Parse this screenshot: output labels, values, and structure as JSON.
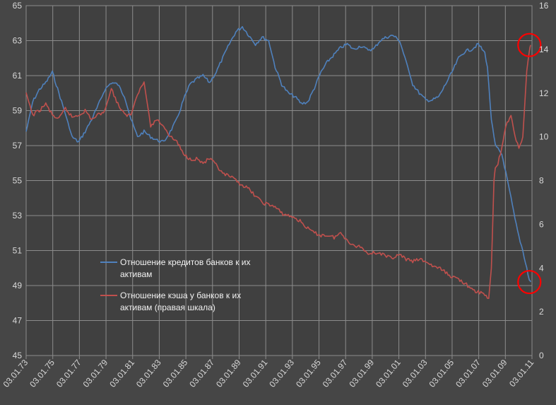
{
  "chart_data": {
    "type": "line",
    "title": "",
    "xlabel": "",
    "ylabel": "",
    "y2label": "",
    "grid": true,
    "legend_position": "center-left",
    "x_ticks": [
      "03.01.73",
      "03.01.75",
      "03.01.77",
      "03.01.79",
      "03.01.81",
      "03.01.83",
      "03.01.85",
      "03.01.87",
      "03.01.89",
      "03.01.91",
      "03.01.93",
      "03.01.95",
      "03.01.97",
      "03.01.99",
      "03.01.01",
      "03.01.03",
      "03.01.05",
      "03.01.07",
      "03.01.09",
      "03.01.11"
    ],
    "y_ticks": [
      "45",
      "47",
      "49",
      "51",
      "53",
      "55",
      "57",
      "59",
      "61",
      "63",
      "65"
    ],
    "y2_ticks": [
      "0",
      "2",
      "4",
      "6",
      "8",
      "10",
      "12",
      "14",
      "16"
    ],
    "ylim": [
      45,
      65
    ],
    "y2lim": [
      0,
      16
    ],
    "x_range_years": [
      1973,
      2011.6
    ],
    "series": [
      {
        "name": "Отношение кредитов  банков к их активам",
        "name_lines": [
          "Отношение  кредитов  банков к их",
          "активам"
        ],
        "axis": "left",
        "color": "#4f81bd",
        "x": [
          1973,
          1973.5,
          1974,
          1974.5,
          1975,
          1975.5,
          1976,
          1976.5,
          1977,
          1977.5,
          1978,
          1978.5,
          1979,
          1979.5,
          1980,
          1980.5,
          1981,
          1981.5,
          1982,
          1982.5,
          1983,
          1983.5,
          1984,
          1984.5,
          1985,
          1985.5,
          1986,
          1986.5,
          1987,
          1987.5,
          1988,
          1988.5,
          1989,
          1989.5,
          1990,
          1990.5,
          1991,
          1991.5,
          1992,
          1992.5,
          1993,
          1993.5,
          1994,
          1994.5,
          1995,
          1995.5,
          1996,
          1996.5,
          1997,
          1997.5,
          1998,
          1998.5,
          1999,
          1999.5,
          2000,
          2000.5,
          2001,
          2001.5,
          2002,
          2002.5,
          2003,
          2003.5,
          2004,
          2004.5,
          2005,
          2005.5,
          2006,
          2006.5,
          2007,
          2007.5,
          2008,
          2008.2,
          2008.5,
          2008.8,
          2009,
          2009.3,
          2009.6,
          2010,
          2010.3,
          2010.6,
          2010.9,
          2011.2,
          2011.4,
          2011.5
        ],
        "values": [
          57.8,
          59.5,
          60.2,
          60.6,
          61.2,
          60.0,
          58.8,
          57.5,
          57.2,
          57.8,
          58.5,
          59.3,
          60.2,
          60.6,
          60.5,
          59.8,
          58.5,
          57.5,
          57.8,
          57.5,
          57.3,
          57.2,
          57.8,
          58.5,
          59.6,
          60.5,
          60.8,
          61.0,
          60.6,
          61.2,
          62.0,
          62.8,
          63.5,
          63.8,
          63.3,
          62.8,
          63.2,
          63.0,
          61.5,
          60.5,
          60.0,
          59.8,
          59.4,
          59.5,
          60.3,
          61.2,
          61.8,
          62.2,
          62.6,
          62.8,
          62.5,
          62.7,
          62.5,
          62.5,
          63.0,
          63.2,
          63.3,
          63.0,
          61.8,
          60.5,
          60.0,
          59.6,
          59.6,
          59.8,
          60.5,
          61.2,
          62.0,
          62.4,
          62.5,
          62.8,
          62.3,
          61.5,
          58.5,
          57.0,
          56.8,
          56.5,
          55.5,
          54.0,
          52.8,
          51.8,
          51.0,
          50.0,
          49.3,
          49.2
        ]
      },
      {
        "name": "Отношение  кэша у банков к их активам (правая шкала)",
        "name_lines": [
          "Отношение  кэша у банков к их",
          "активам (правая шкала)"
        ],
        "axis": "right",
        "color": "#c0504d",
        "x": [
          1973,
          1973.5,
          1974,
          1974.5,
          1975,
          1975.5,
          1976,
          1976.5,
          1977,
          1977.5,
          1978,
          1978.5,
          1979,
          1979.5,
          1980,
          1980.5,
          1981,
          1981.5,
          1982,
          1982.5,
          1983,
          1983.5,
          1984,
          1984.5,
          1985,
          1985.5,
          1986,
          1986.5,
          1987,
          1987.5,
          1988,
          1988.5,
          1989,
          1989.5,
          1990,
          1990.5,
          1991,
          1991.5,
          1992,
          1992.5,
          1993,
          1993.5,
          1994,
          1994.5,
          1995,
          1995.5,
          1996,
          1996.5,
          1997,
          1997.5,
          1998,
          1998.5,
          1999,
          1999.5,
          2000,
          2000.5,
          2001,
          2001.5,
          2002,
          2002.5,
          2003,
          2003.5,
          2004,
          2004.5,
          2005,
          2005.5,
          2006,
          2006.5,
          2007,
          2007.5,
          2008,
          2008.3,
          2008.5,
          2008.7,
          2008.8,
          2009,
          2009.3,
          2009.6,
          2010,
          2010.3,
          2010.6,
          2010.9,
          2011.2,
          2011.4,
          2011.5
        ],
        "values": [
          12.0,
          11.0,
          11.2,
          11.5,
          11.0,
          10.8,
          11.3,
          10.9,
          11.0,
          11.2,
          10.8,
          11.0,
          11.2,
          12.2,
          11.5,
          11.0,
          11.0,
          12.0,
          12.5,
          10.5,
          10.8,
          10.5,
          10.0,
          9.8,
          9.2,
          9.0,
          9.0,
          8.8,
          9.0,
          8.7,
          8.3,
          8.2,
          8.0,
          7.8,
          7.6,
          7.3,
          7.0,
          6.9,
          6.8,
          6.5,
          6.4,
          6.3,
          6.1,
          5.8,
          5.6,
          5.5,
          5.5,
          5.4,
          5.6,
          5.3,
          5.0,
          5.0,
          4.7,
          4.7,
          4.7,
          4.5,
          4.5,
          4.6,
          4.4,
          4.3,
          4.4,
          4.3,
          4.1,
          4.0,
          3.8,
          3.6,
          3.5,
          3.3,
          3.0,
          2.9,
          2.8,
          2.6,
          4.0,
          8.0,
          8.5,
          8.8,
          9.5,
          10.5,
          11.0,
          10.0,
          9.5,
          10.0,
          13.0,
          14.0,
          14.2
        ]
      }
    ],
    "annotations": [
      {
        "shape": "circle",
        "color": "#ff0000",
        "target_series": 0,
        "x": 2011.4,
        "y": 49.2
      },
      {
        "shape": "circle",
        "color": "#ff0000",
        "target_series": 1,
        "x": 2011.4,
        "y": 14.2
      }
    ],
    "colors": {
      "background": "#464646",
      "plot_background": "#404040",
      "grid": "#8c8c8c",
      "axis_text": "#d8d8d8",
      "legend_text": "#f2f2f2"
    }
  }
}
